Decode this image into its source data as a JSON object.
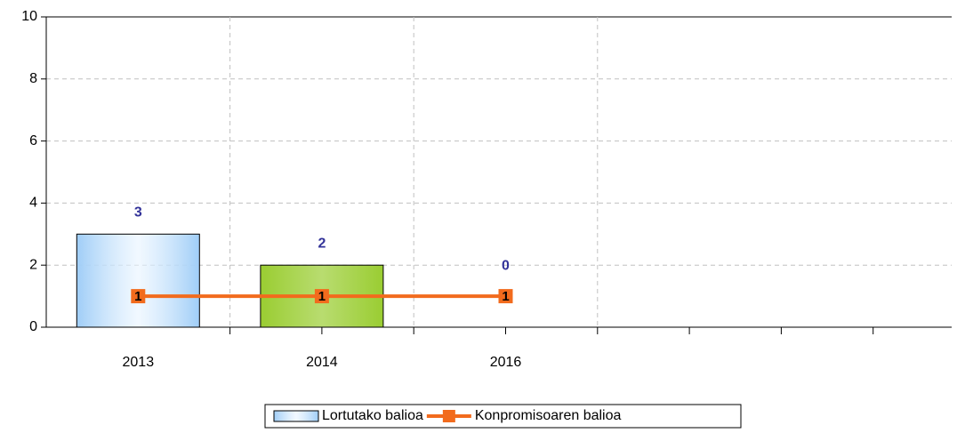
{
  "chart_data": {
    "type": "bar-line",
    "categories": [
      "2013",
      "2014",
      "2016",
      null,
      null
    ],
    "series": [
      {
        "name": "Lortutako balioa",
        "type": "bar",
        "color": "#9fcdf7",
        "colors": [
          "#9fcdf7",
          "#9acd32",
          "#9acd32",
          null,
          null
        ],
        "values": [
          3,
          2,
          0,
          null,
          null
        ]
      },
      {
        "name": "Konpromisoaren balioa",
        "type": "line",
        "color": "#f26b1d",
        "values": [
          1,
          1,
          1,
          null,
          null
        ]
      }
    ],
    "ylim": [
      0,
      10
    ],
    "yticks": [
      0,
      2,
      4,
      6,
      8,
      10
    ],
    "grid": true,
    "legend": "bottom"
  }
}
